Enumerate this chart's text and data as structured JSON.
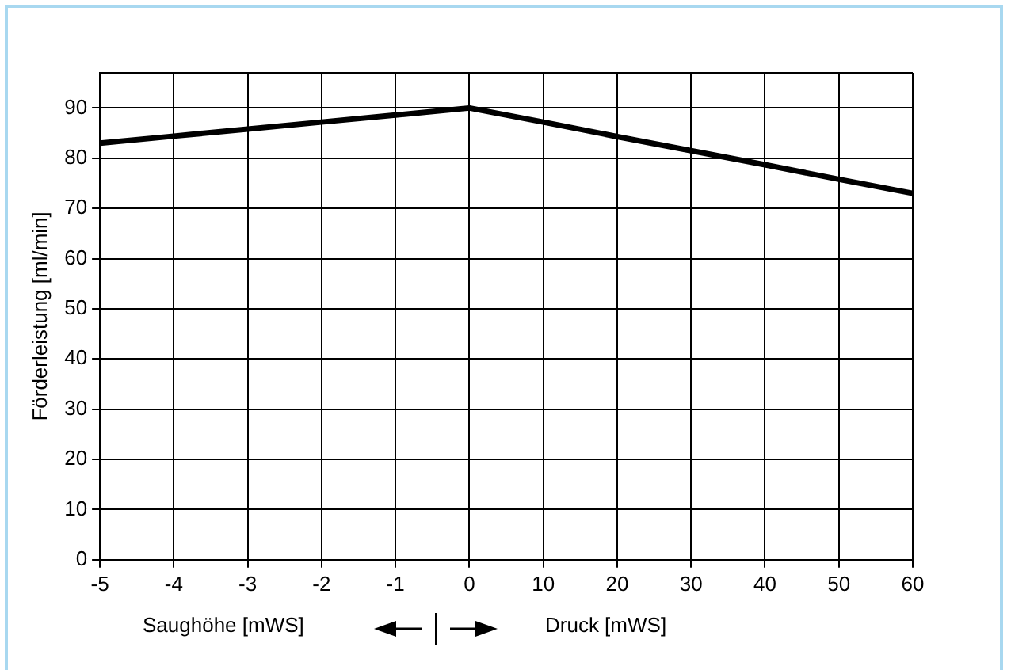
{
  "chart_data": {
    "type": "line",
    "ylabel": "Förderleistung [ml/min]",
    "categories": [
      "-5",
      "-4",
      "-3",
      "-2",
      "-1",
      "0",
      "10",
      "20",
      "30",
      "40",
      "50",
      "60"
    ],
    "series": [
      {
        "color": "#000000",
        "values": [
          83,
          84.4,
          85.8,
          87.2,
          88.6,
          90,
          87.2,
          84.3,
          81.5,
          78.7,
          75.8,
          73
        ]
      }
    ],
    "ylim": [
      0,
      97
    ],
    "yticks": [
      0,
      10,
      20,
      30,
      40,
      50,
      60,
      70,
      80,
      90
    ],
    "grid": true,
    "legend": false,
    "marker": "none",
    "line_style": "solid",
    "annotations": [
      "Saughöhe [mWS]",
      "Druck [mWS]"
    ]
  }
}
